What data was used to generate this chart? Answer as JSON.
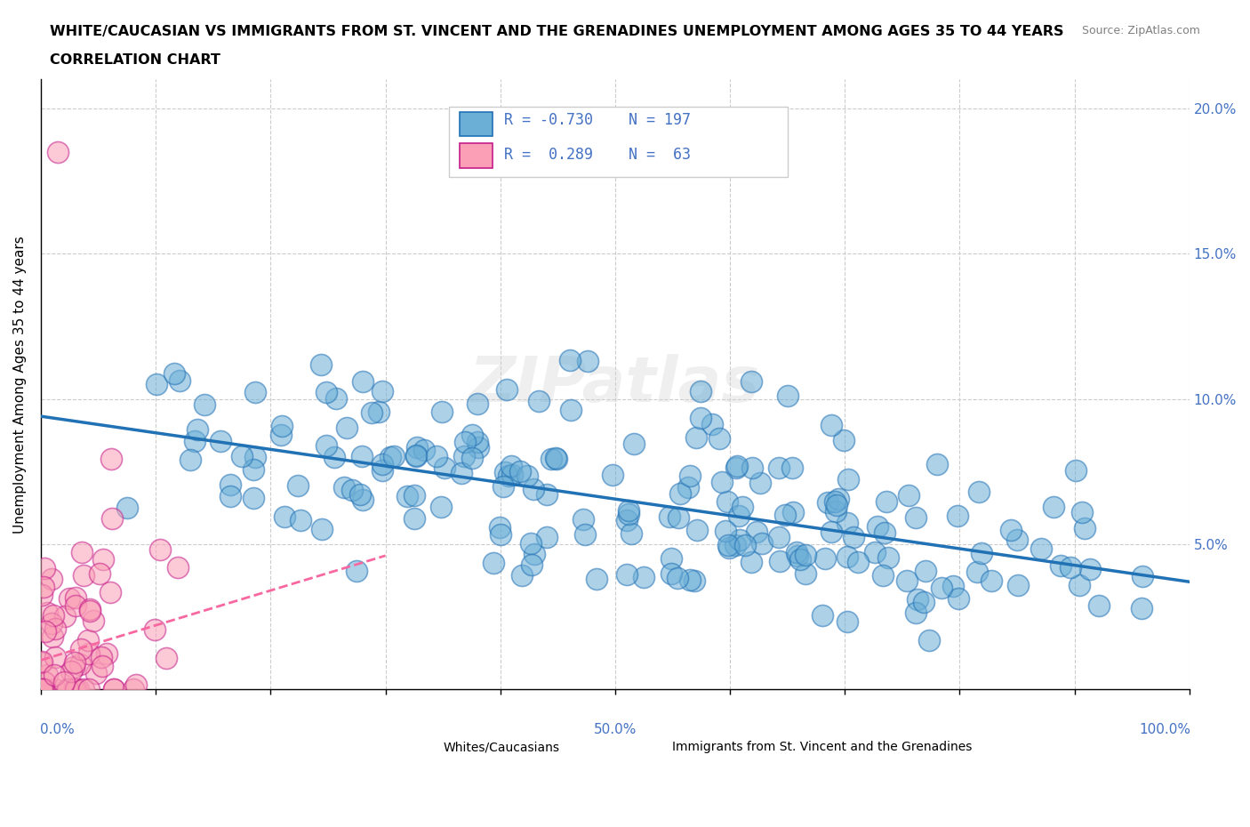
{
  "title_line1": "WHITE/CAUCASIAN VS IMMIGRANTS FROM ST. VINCENT AND THE GRENADINES UNEMPLOYMENT AMONG AGES 35 TO 44 YEARS",
  "title_line2": "CORRELATION CHART",
  "source": "Source: ZipAtlas.com",
  "ylabel": "Unemployment Among Ages 35 to 44 years",
  "xlim": [
    0,
    1.0
  ],
  "ylim": [
    0,
    0.21
  ],
  "y_ticks": [
    0.0,
    0.05,
    0.1,
    0.15,
    0.2
  ],
  "blue_R": -0.73,
  "blue_N": 197,
  "pink_R": 0.289,
  "pink_N": 63,
  "blue_color": "#6baed6",
  "pink_color": "#fa9fb5",
  "blue_edge_color": "#2171b5",
  "pink_edge_color": "#c51b8a",
  "blue_line_color": "#2171b5",
  "pink_line_color": "#f768a1",
  "grid_color": "#cccccc",
  "watermark": "ZIPatlas",
  "legend_label_blue": "Whites/Caucasians",
  "legend_label_pink": "Immigrants from St. Vincent and the Grenadines",
  "blue_intercept": 0.094,
  "blue_slope": -0.057,
  "pink_intercept": 0.01,
  "pink_slope": 0.12
}
